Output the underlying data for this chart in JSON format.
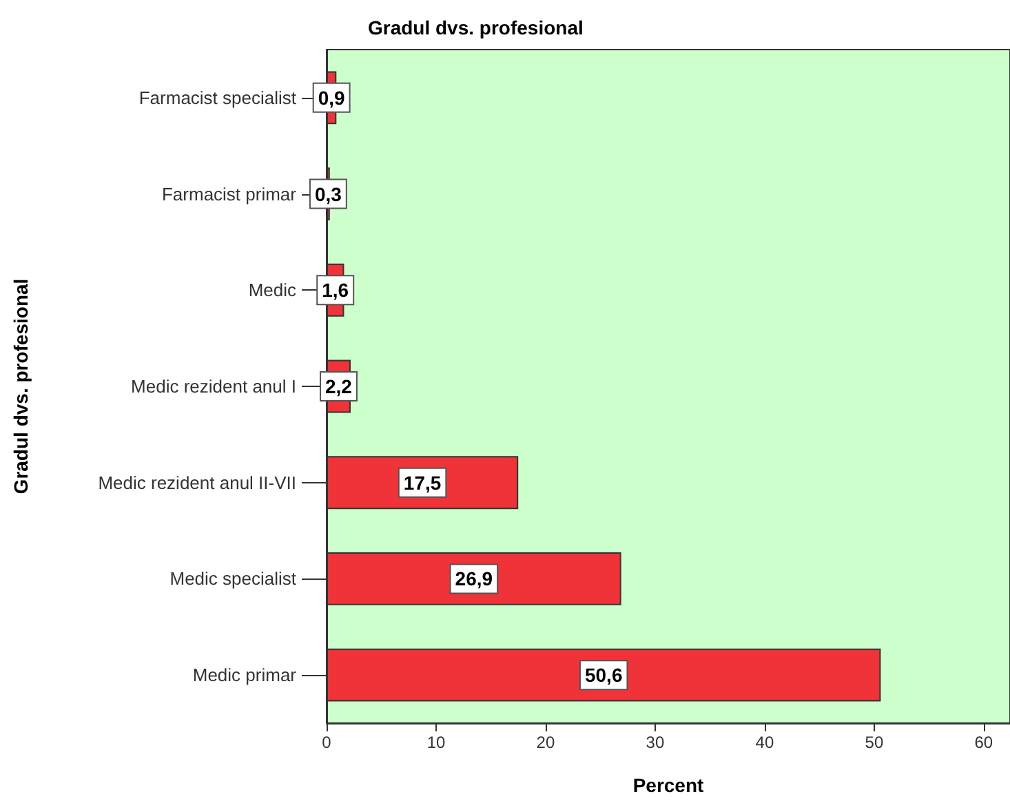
{
  "chart_data": {
    "type": "bar",
    "orientation": "horizontal",
    "title": "Gradul dvs. profesional",
    "xlabel": "Percent",
    "ylabel": "Gradul dvs. profesional",
    "categories": [
      "Farmacist specialist",
      "Farmacist primar",
      "Medic",
      "Medic rezident anul I",
      "Medic rezident anul II-VII",
      "Medic specialist",
      "Medic primar"
    ],
    "values": [
      0.9,
      0.3,
      1.6,
      2.2,
      17.5,
      26.9,
      50.6
    ],
    "value_labels": [
      "0,9",
      "0,3",
      "1,6",
      "2,2",
      "17,5",
      "26,9",
      "50,6"
    ],
    "color": "#ef3338",
    "xlim": [
      0,
      62.4
    ],
    "xticks": [
      0,
      10,
      20,
      30,
      40,
      50,
      60
    ],
    "grid": false
  }
}
